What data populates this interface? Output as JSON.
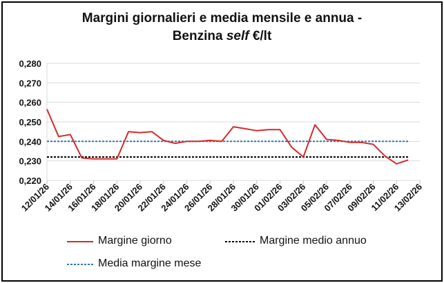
{
  "chart_data": {
    "type": "line",
    "title_line1": "Margini giornalieri e media mensile e annua -",
    "title_line2_prefix": "Benzina ",
    "title_line2_italic": "self",
    "title_line2_suffix": " €/lt",
    "ylim": [
      0.22,
      0.28
    ],
    "y_ticks": [
      "0,220",
      "0,230",
      "0,240",
      "0,250",
      "0,260",
      "0,270",
      "0,280"
    ],
    "x_tick_labels": [
      "12/01/26",
      "14/01/26",
      "16/01/26",
      "18/01/26",
      "20/01/26",
      "22/01/26",
      "24/01/26",
      "26/01/26",
      "28/01/26",
      "30/01/26",
      "01/02/26",
      "03/02/26",
      "05/02/26",
      "07/02/26",
      "09/02/26",
      "11/02/26",
      "13/02/26"
    ],
    "grid": "horizontal",
    "legend_position": "bottom",
    "colors": {
      "margine_giorno": "#d42a2a",
      "margine_medio_annuo": "#000000",
      "media_margine_mese": "#2e75b6"
    },
    "series": [
      {
        "name": "Margine giorno",
        "style": "solid",
        "x": [
          "12/01/26",
          "13/01/26",
          "14/01/26",
          "15/01/26",
          "16/01/26",
          "17/01/26",
          "18/01/26",
          "19/01/26",
          "20/01/26",
          "21/01/26",
          "22/01/26",
          "23/01/26",
          "24/01/26",
          "25/01/26",
          "26/01/26",
          "27/01/26",
          "28/01/26",
          "29/01/26",
          "30/01/26",
          "31/01/26",
          "01/02/26",
          "02/02/26",
          "03/02/26",
          "04/02/26",
          "05/02/26",
          "06/02/26",
          "07/02/26",
          "08/02/26",
          "09/02/26",
          "10/02/26",
          "11/02/26",
          "12/02/26"
        ],
        "values": [
          0.2565,
          0.2425,
          0.2435,
          0.2315,
          0.231,
          0.231,
          0.231,
          0.245,
          0.2445,
          0.245,
          0.2405,
          0.239,
          0.24,
          0.24,
          0.2405,
          0.24,
          0.2475,
          0.2465,
          0.2455,
          0.246,
          0.246,
          0.237,
          0.232,
          0.2485,
          0.241,
          0.2405,
          0.2395,
          0.2395,
          0.2385,
          0.2325,
          0.2285,
          0.2305
        ]
      },
      {
        "name": "Margine medio annuo",
        "style": "dashed",
        "x": [
          "12/01/26",
          "12/02/26"
        ],
        "values": [
          0.232,
          0.232
        ]
      },
      {
        "name": "Media margine mese",
        "style": "dashed",
        "x": [
          "12/01/26",
          "12/02/26"
        ],
        "values": [
          0.24,
          0.24
        ]
      }
    ]
  }
}
